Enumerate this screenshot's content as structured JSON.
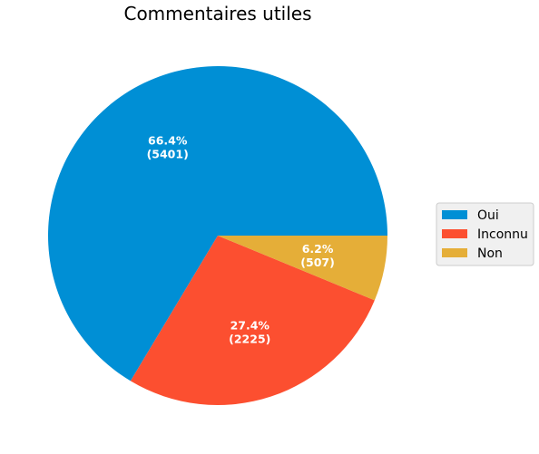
{
  "chart_data": {
    "type": "pie",
    "title": "Commentaires utiles",
    "categories": [
      "Oui",
      "Inconnu",
      "Non"
    ],
    "values": [
      5401,
      2225,
      507
    ],
    "percent_labels": [
      "66.4%",
      "27.4%",
      "6.2%"
    ],
    "count_labels": [
      "(5401)",
      "(2225)",
      "(507)"
    ],
    "colors": [
      "#008fd5",
      "#fc4f30",
      "#e5ae38"
    ],
    "legend_position": "right"
  }
}
